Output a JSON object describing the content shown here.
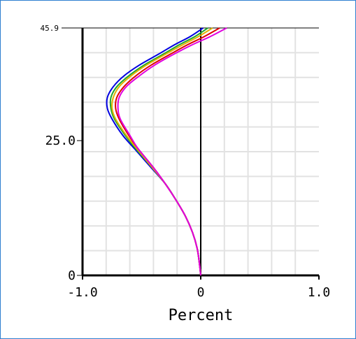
{
  "chart_data": {
    "type": "line",
    "title": "",
    "xlabel": "Percent",
    "ylabel": "",
    "xlim": [
      -1.0,
      1.0
    ],
    "ylim": [
      0,
      45.9
    ],
    "x_ticks": [
      -1.0,
      0,
      1.0
    ],
    "x_tick_labels": [
      "-1.0",
      "0",
      "1.0"
    ],
    "y_ticks": [
      0,
      25.0,
      45.9
    ],
    "y_tick_labels": [
      "0",
      "25.0",
      "45.9"
    ],
    "grid": true,
    "legend": "none",
    "zero_line": true,
    "series": [
      {
        "color": "#0000e0",
        "points": [
          [
            0,
            0
          ],
          [
            -0.01,
            2
          ],
          [
            -0.03,
            5
          ],
          [
            -0.07,
            8
          ],
          [
            -0.13,
            11
          ],
          [
            -0.21,
            14
          ],
          [
            -0.3,
            17
          ],
          [
            -0.42,
            20
          ],
          [
            -0.56,
            23.5
          ],
          [
            -0.66,
            26
          ],
          [
            -0.75,
            29
          ],
          [
            -0.79,
            31
          ],
          [
            -0.79,
            33
          ],
          [
            -0.74,
            35
          ],
          [
            -0.65,
            37
          ],
          [
            -0.52,
            39
          ],
          [
            -0.36,
            41
          ],
          [
            -0.22,
            42.8
          ],
          [
            -0.09,
            44.3
          ],
          [
            0.02,
            45.9
          ]
        ]
      },
      {
        "color": "#1fa52a",
        "points": [
          [
            0,
            0
          ],
          [
            -0.01,
            2
          ],
          [
            -0.03,
            5
          ],
          [
            -0.07,
            8
          ],
          [
            -0.13,
            11
          ],
          [
            -0.21,
            14
          ],
          [
            -0.3,
            17
          ],
          [
            -0.41,
            20
          ],
          [
            -0.55,
            23.5
          ],
          [
            -0.64,
            26
          ],
          [
            -0.73,
            29
          ],
          [
            -0.76,
            31
          ],
          [
            -0.76,
            33
          ],
          [
            -0.71,
            35
          ],
          [
            -0.61,
            37
          ],
          [
            -0.48,
            39
          ],
          [
            -0.32,
            41
          ],
          [
            -0.18,
            42.8
          ],
          [
            -0.05,
            44.3
          ],
          [
            0.06,
            45.9
          ]
        ]
      },
      {
        "color": "#e0b400",
        "points": [
          [
            0,
            0
          ],
          [
            -0.01,
            2
          ],
          [
            -0.03,
            5
          ],
          [
            -0.07,
            8
          ],
          [
            -0.13,
            11
          ],
          [
            -0.21,
            14
          ],
          [
            -0.3,
            17
          ],
          [
            -0.41,
            20
          ],
          [
            -0.54,
            23.5
          ],
          [
            -0.63,
            26
          ],
          [
            -0.72,
            29
          ],
          [
            -0.75,
            31
          ],
          [
            -0.74,
            33
          ],
          [
            -0.69,
            35
          ],
          [
            -0.59,
            37
          ],
          [
            -0.46,
            39
          ],
          [
            -0.3,
            41
          ],
          [
            -0.15,
            42.8
          ],
          [
            -0.02,
            44.3
          ],
          [
            0.1,
            45.9
          ]
        ]
      },
      {
        "color": "#e00000",
        "points": [
          [
            0,
            0
          ],
          [
            -0.01,
            2
          ],
          [
            -0.03,
            5
          ],
          [
            -0.07,
            8
          ],
          [
            -0.13,
            11
          ],
          [
            -0.21,
            14
          ],
          [
            -0.3,
            17
          ],
          [
            -0.4,
            20
          ],
          [
            -0.53,
            23.5
          ],
          [
            -0.61,
            26
          ],
          [
            -0.69,
            29
          ],
          [
            -0.72,
            31
          ],
          [
            -0.71,
            33
          ],
          [
            -0.65,
            35
          ],
          [
            -0.55,
            37
          ],
          [
            -0.42,
            39
          ],
          [
            -0.26,
            41
          ],
          [
            -0.11,
            42.8
          ],
          [
            0.03,
            44.3
          ],
          [
            0.16,
            45.9
          ]
        ]
      },
      {
        "color": "#e000e0",
        "points": [
          [
            0,
            0
          ],
          [
            -0.01,
            2
          ],
          [
            -0.03,
            5
          ],
          [
            -0.07,
            8
          ],
          [
            -0.13,
            11
          ],
          [
            -0.21,
            14
          ],
          [
            -0.3,
            17
          ],
          [
            -0.4,
            20
          ],
          [
            -0.53,
            23.5
          ],
          [
            -0.6,
            26
          ],
          [
            -0.68,
            29
          ],
          [
            -0.7,
            31
          ],
          [
            -0.69,
            33
          ],
          [
            -0.63,
            35
          ],
          [
            -0.52,
            37
          ],
          [
            -0.39,
            39
          ],
          [
            -0.23,
            41
          ],
          [
            -0.07,
            42.8
          ],
          [
            0.08,
            44.3
          ],
          [
            0.22,
            45.9
          ]
        ]
      }
    ]
  }
}
